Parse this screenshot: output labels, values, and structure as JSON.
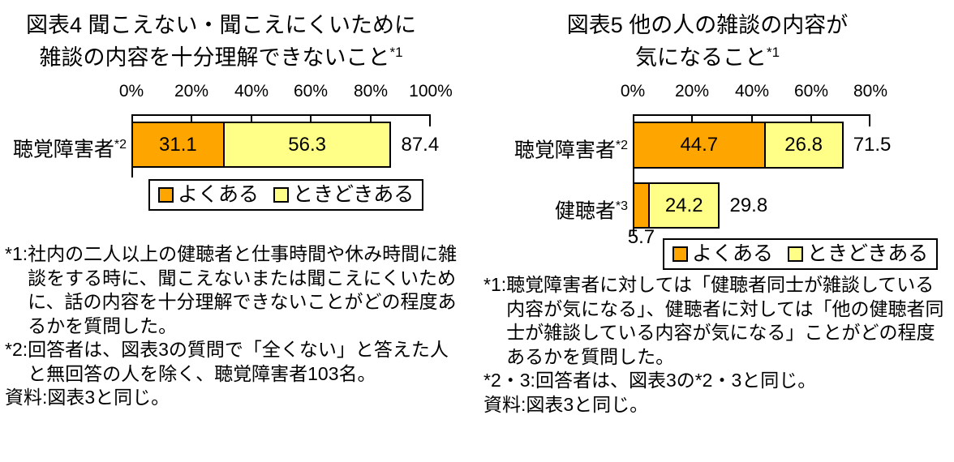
{
  "chart_data": [
    {
      "id": "figure4",
      "type": "bar",
      "orientation": "horizontal-stacked",
      "title_line1": "図表4 聞こえない・聞こえにくいために",
      "title_line2": "雑談の内容を十分理解できないこと",
      "title_superscript": "*1",
      "axis_ticks": [
        "0%",
        "20%",
        "40%",
        "60%",
        "80%",
        "100%"
      ],
      "axis_max": 100,
      "grid": "ticks-top",
      "legend_position": "below-bar",
      "categories": [
        {
          "label": "聴覚障害者",
          "superscript": "*2"
        }
      ],
      "series": [
        {
          "name": "よくある",
          "color": "#FFA500",
          "values": [
            31.1
          ]
        },
        {
          "name": "ときどきある",
          "color": "#FFFF88",
          "values": [
            56.3
          ]
        }
      ],
      "totals": [
        87.4
      ],
      "legend": [
        {
          "label": "よくある",
          "color": "#FFA500"
        },
        {
          "label": "ときどきある",
          "color": "#FFFF88"
        }
      ],
      "footnotes": [
        {
          "label": "*1:",
          "text": "社内の二人以上の健聴者と仕事時間や休み時間に雑談をする時に、聞こえないまたは聞こえにくいために、話の内容を十分理解できないことがどの程度あるかを質問した。"
        },
        {
          "label": "*2:",
          "text": "回答者は、図表3の質問で「全くない」と答えた人と無回答の人を除く、聴覚障害者103名。"
        },
        {
          "label": "資料:",
          "text": "図表3と同じ。"
        }
      ]
    },
    {
      "id": "figure5",
      "type": "bar",
      "orientation": "horizontal-stacked",
      "title_line1": "図表5 他の人の雑談の内容が",
      "title_line2": "気になること",
      "title_superscript": "*1",
      "axis_ticks": [
        "0%",
        "20%",
        "40%",
        "60%",
        "80%"
      ],
      "axis_max": 80,
      "grid": "ticks-top",
      "legend_position": "below-bars",
      "categories": [
        {
          "label": "聴覚障害者",
          "superscript": "*2"
        },
        {
          "label": "健聴者",
          "superscript": "*3"
        }
      ],
      "series": [
        {
          "name": "よくある",
          "color": "#FFA500",
          "values": [
            44.7,
            5.7
          ]
        },
        {
          "name": "ときどきある",
          "color": "#FFFF88",
          "values": [
            26.8,
            24.2
          ]
        }
      ],
      "totals": [
        71.5,
        29.8
      ],
      "legend": [
        {
          "label": "よくある",
          "color": "#FFA500"
        },
        {
          "label": "ときどきある",
          "color": "#FFFF88"
        }
      ],
      "footnotes": [
        {
          "label": "*1:",
          "text": "聴覚障害者に対しては「健聴者同士が雑談している内容が気になる」、健聴者に対しては「他の健聴者同士が雑談している内容が気になる」ことがどの程度あるかを質問した。"
        },
        {
          "label": "*2・3:",
          "text": "回答者は、図表3の*2・3と同じ。"
        },
        {
          "label": "資料:",
          "text": "図表3と同じ。"
        }
      ]
    }
  ]
}
